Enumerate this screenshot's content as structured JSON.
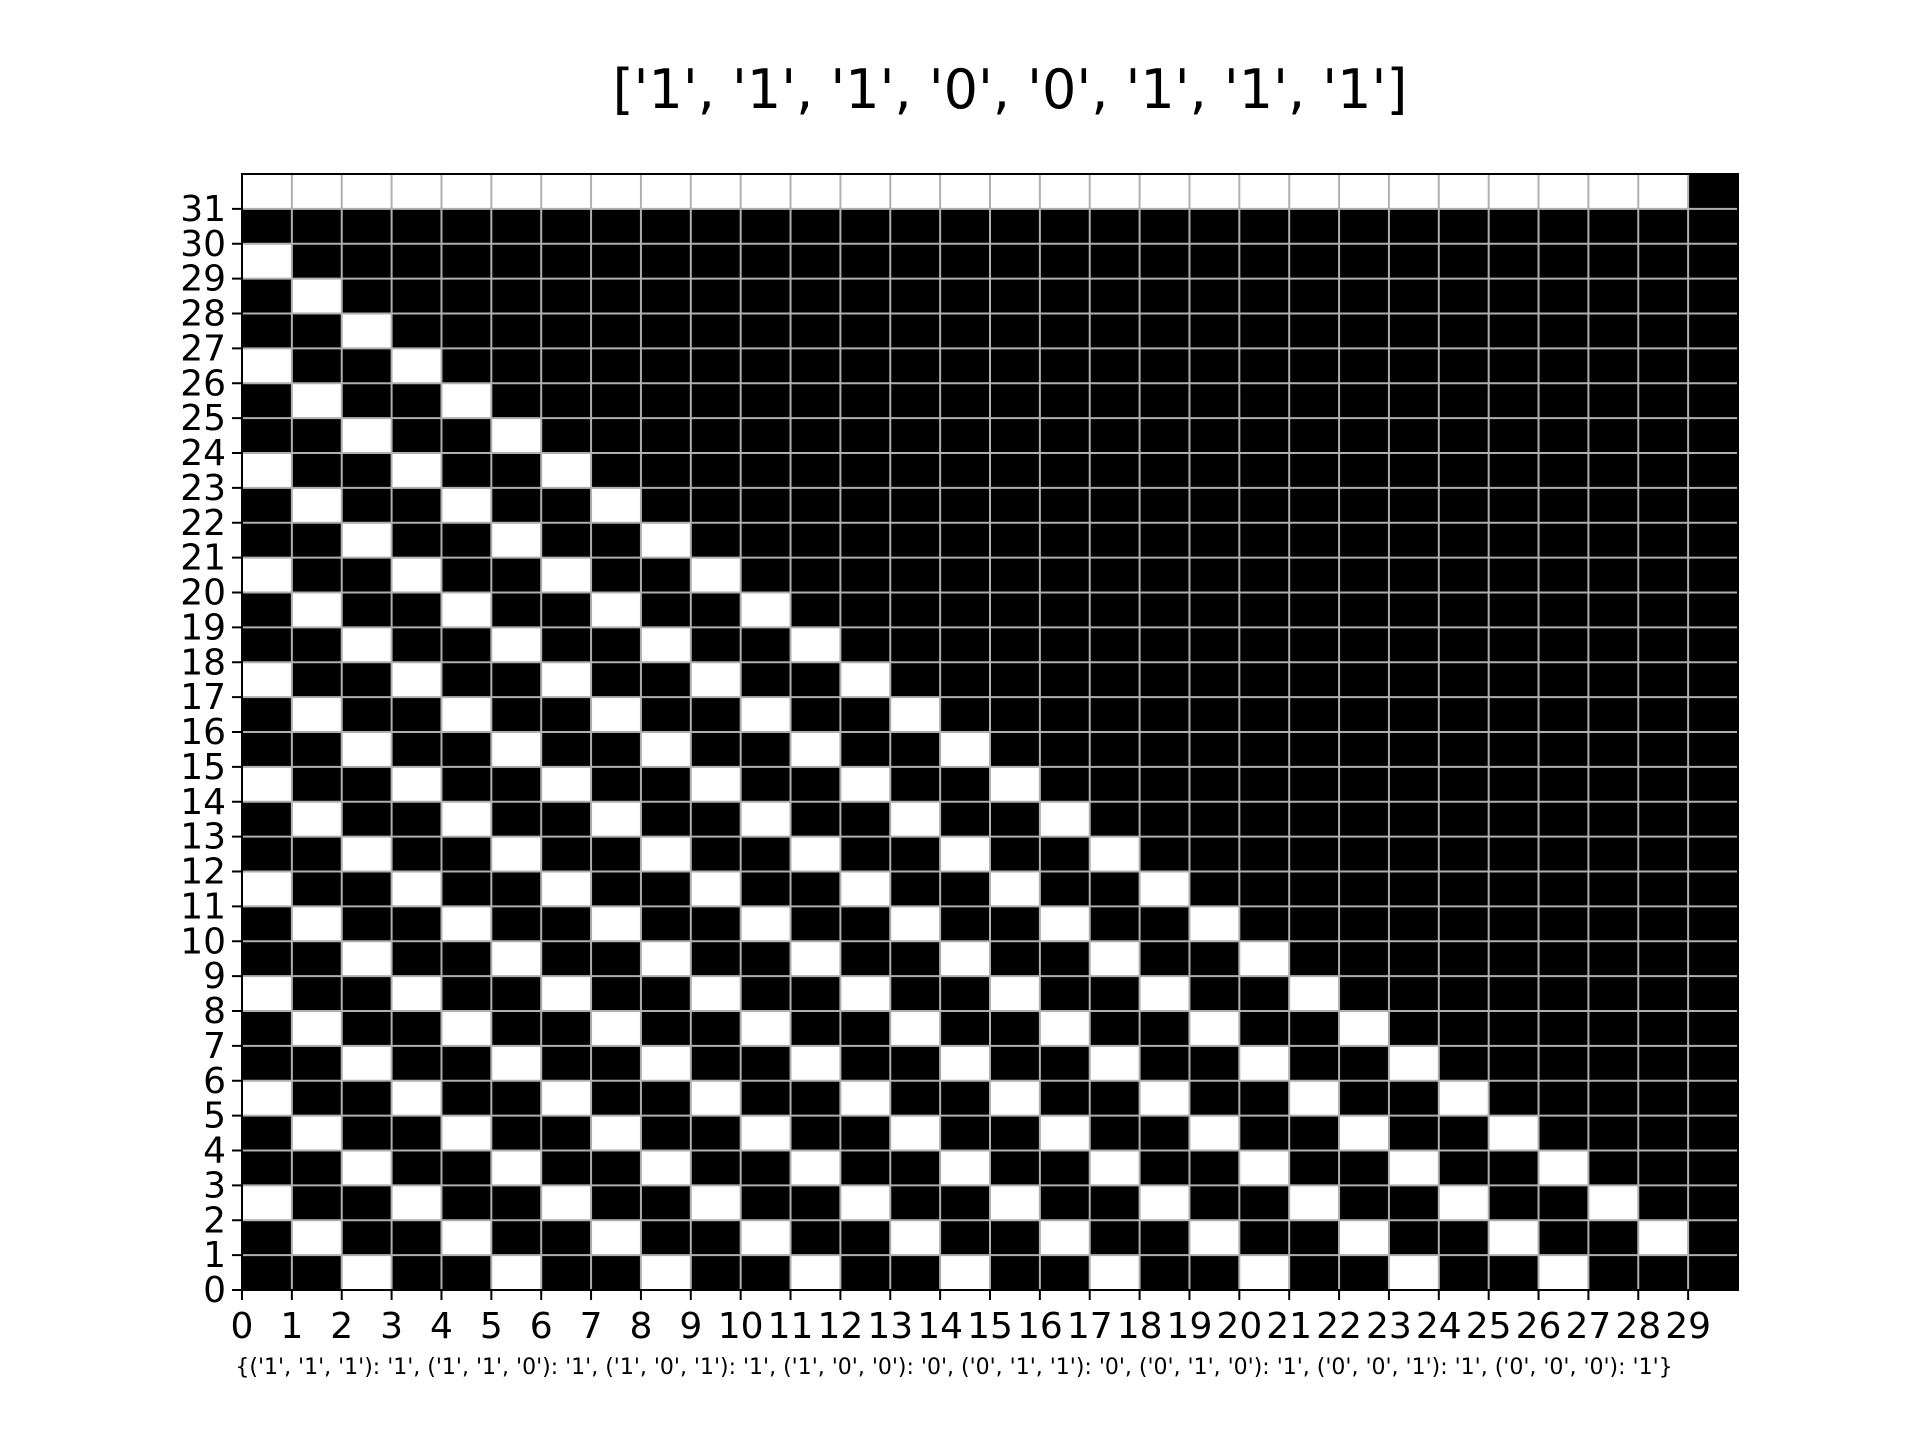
{
  "chart_data": {
    "type": "heatmap",
    "title": "['1', '1', '1', '0', '0', '1', '1', '1']",
    "caption": "{('1', '1', '1'): '1', ('1', '1', '0'): '1', ('1', '0', '1'): '1', ('1', '0', '0'): '0', ('0', '1', '1'): '0', ('0', '1', '0'): '1', ('0', '0', '1'): '1', ('0', '0', '0'): '1'}",
    "x_ticks": [
      "0",
      "1",
      "2",
      "3",
      "4",
      "5",
      "6",
      "7",
      "8",
      "9",
      "10",
      "11",
      "12",
      "13",
      "14",
      "15",
      "16",
      "17",
      "18",
      "19",
      "20",
      "21",
      "22",
      "23",
      "24",
      "25",
      "26",
      "27",
      "28",
      "29"
    ],
    "y_ticks": [
      "0",
      "1",
      "2",
      "3",
      "4",
      "5",
      "6",
      "7",
      "8",
      "9",
      "10",
      "11",
      "12",
      "13",
      "14",
      "15",
      "16",
      "17",
      "18",
      "19",
      "20",
      "21",
      "22",
      "23",
      "24",
      "25",
      "26",
      "27",
      "28",
      "29",
      "30",
      "31"
    ],
    "columns": 30,
    "rows": 32,
    "initial_row": "000000000000000000000000000001",
    "rule": {
      "111": 1,
      "110": 1,
      "101": 1,
      "100": 0,
      "011": 0,
      "010": 1,
      "001": 1,
      "000": 1
    },
    "boundary": "fixed-0",
    "colors": {
      "on": "#000000",
      "off": "#ffffff",
      "grid": "#b0b0b0",
      "frame": "#000000"
    },
    "grid": true
  }
}
